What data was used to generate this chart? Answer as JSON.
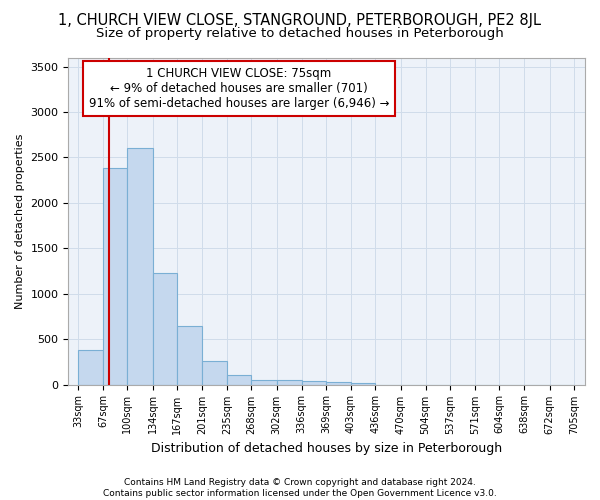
{
  "title": "1, CHURCH VIEW CLOSE, STANGROUND, PETERBOROUGH, PE2 8JL",
  "subtitle": "Size of property relative to detached houses in Peterborough",
  "xlabel": "Distribution of detached houses by size in Peterborough",
  "ylabel": "Number of detached properties",
  "footer": "Contains HM Land Registry data © Crown copyright and database right 2024.\nContains public sector information licensed under the Open Government Licence v3.0.",
  "bar_left_edges": [
    33,
    67,
    100,
    134,
    167,
    201,
    235,
    268,
    302,
    336,
    369,
    403,
    436,
    470,
    504,
    537,
    571,
    604,
    638,
    672
  ],
  "bar_heights": [
    375,
    2380,
    2600,
    1230,
    640,
    260,
    110,
    55,
    45,
    35,
    25,
    18,
    0,
    0,
    0,
    0,
    0,
    0,
    0,
    0
  ],
  "bar_widths": [
    34,
    33,
    34,
    33,
    34,
    34,
    33,
    34,
    34,
    33,
    34,
    33,
    34,
    34,
    33,
    34,
    33,
    34,
    34,
    33
  ],
  "bar_color": "#c5d8ee",
  "bar_edge_color": "#7aafd4",
  "xtick_labels": [
    "33sqm",
    "67sqm",
    "100sqm",
    "134sqm",
    "167sqm",
    "201sqm",
    "235sqm",
    "268sqm",
    "302sqm",
    "336sqm",
    "369sqm",
    "403sqm",
    "436sqm",
    "470sqm",
    "504sqm",
    "537sqm",
    "571sqm",
    "604sqm",
    "638sqm",
    "672sqm",
    "705sqm"
  ],
  "xtick_positions": [
    33,
    67,
    100,
    134,
    167,
    201,
    235,
    268,
    302,
    336,
    369,
    403,
    436,
    470,
    504,
    537,
    571,
    604,
    638,
    672,
    705
  ],
  "ylim": [
    0,
    3600
  ],
  "xlim": [
    20,
    720
  ],
  "red_line_x": 75,
  "annotation_text": "1 CHURCH VIEW CLOSE: 75sqm\n← 9% of detached houses are smaller (701)\n91% of semi-detached houses are larger (6,946) →",
  "annotation_box_color": "#ffffff",
  "annotation_border_color": "#cc0000",
  "grid_color": "#d0dcea",
  "background_color": "#edf2f9",
  "title_fontsize": 10.5,
  "subtitle_fontsize": 9.5,
  "annotation_fontsize": 8.5,
  "ylabel_fontsize": 8,
  "xlabel_fontsize": 9
}
